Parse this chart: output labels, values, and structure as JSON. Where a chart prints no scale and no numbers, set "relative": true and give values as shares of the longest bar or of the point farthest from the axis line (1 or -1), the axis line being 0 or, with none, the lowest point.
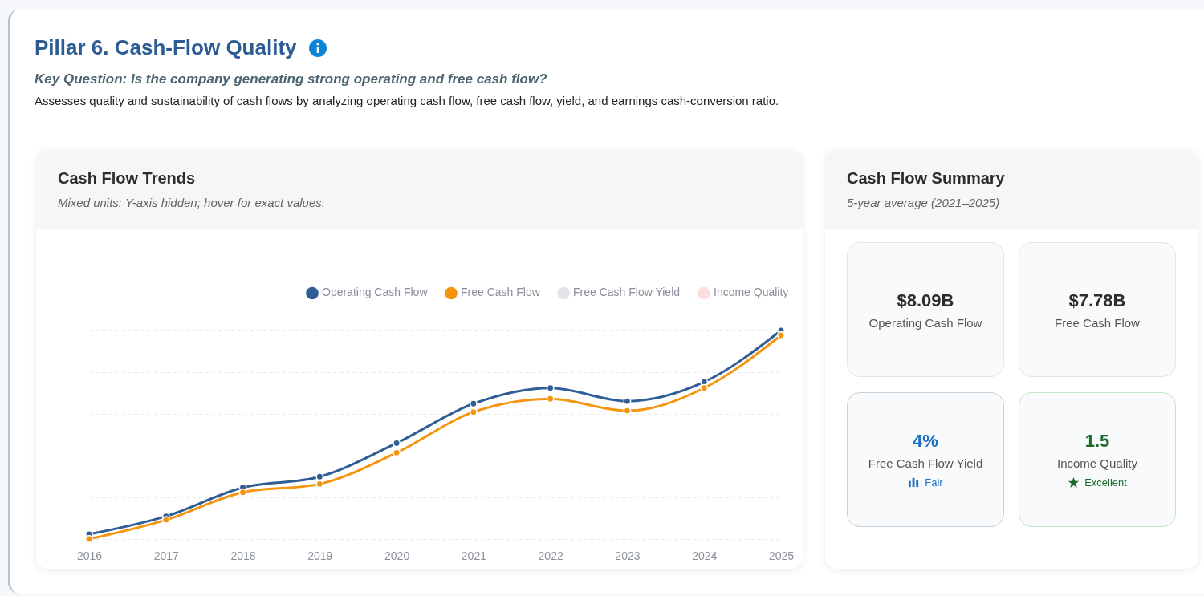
{
  "chart_data": [
    {
      "type": "line",
      "title": "Cash Flow Trends",
      "subtitle": "Mixed units: Y-axis hidden; hover for exact values.",
      "annotations": [
        "Pillar 6. Cash-Flow Quality",
        "Key Question: Is the company generating strong operating and free cash flow?",
        "Assesses quality and sustainability of cash flows by analyzing operating cash flow, free cash flow, yield, and earnings cash-conversion ratio."
      ],
      "categories": [
        "2016",
        "2017",
        "2018",
        "2019",
        "2020",
        "2021",
        "2022",
        "2023",
        "2024",
        "2025"
      ],
      "relative": true,
      "grid": "y",
      "legend": "top right",
      "marker": "circle",
      "line_style": "solid",
      "series": [
        {
          "name": "Operating Cash Flow",
          "color": "#2f5d95",
          "values": [
            0.023,
            0.109,
            0.247,
            0.299,
            0.46,
            0.649,
            0.724,
            0.661,
            0.753,
            1
          ]
        },
        {
          "name": "Free Cash Flow",
          "color": "#f5940f",
          "values": [
            0,
            0.092,
            0.224,
            0.264,
            0.414,
            0.609,
            0.672,
            0.615,
            0.724,
            0.977
          ]
        },
        {
          "name": "Free Cash Flow Yield",
          "color": "#e2e4e8",
          "values": [
            null,
            null,
            null,
            null,
            null,
            null,
            null,
            null,
            null,
            null
          ]
        },
        {
          "name": "Income Quality",
          "color": "#f9dfe0",
          "values": [
            null,
            null,
            null,
            null,
            null,
            null,
            null,
            null,
            null,
            null
          ]
        }
      ]
    },
    {
      "type": "other",
      "title": "Cash Flow Summary",
      "subtitle": "5-year average (2021–2025)",
      "annotations": [
        "$8.09B",
        "Operating Cash Flow",
        "$7.78B",
        "Free Cash Flow",
        "4%",
        "Free Cash Flow Yield",
        "Fair",
        "1.5",
        "Income Quality",
        "Excellent"
      ]
    }
  ]
}
